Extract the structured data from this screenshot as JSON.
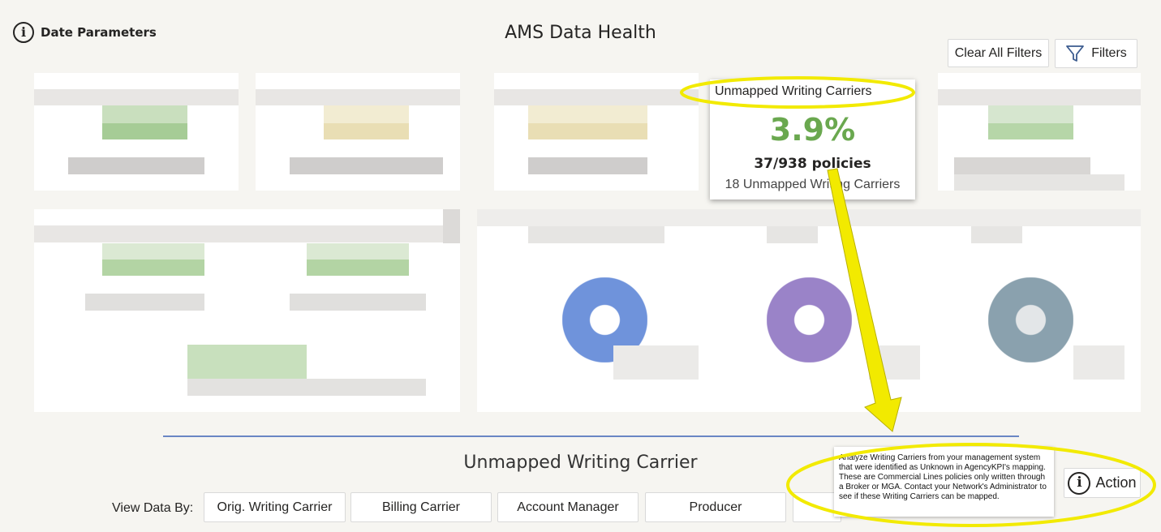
{
  "header": {
    "date_parameters_label": "Date Parameters",
    "title": "AMS Data Health",
    "clear_filters_label": "Clear All Filters",
    "filters_label": "Filters"
  },
  "tooltip": {
    "title": "Unmapped Writing Carriers",
    "percent": "3.9%",
    "policies": "37/938 policies",
    "subtext": "18 Unmapped Writing Carriers"
  },
  "section": {
    "title": "Unmapped Writing Carrier",
    "view_data_by_label": "View Data By:",
    "view_options": [
      "Orig. Writing Carrier",
      "Billing Carrier",
      "Account Manager",
      "Producer",
      ""
    ]
  },
  "explainer": {
    "text": "Analyze Writing Carriers from your management system that were identified as Unknown in AgencyKPI's mapping. These are Commercial Lines policies only written through a Broker or MGA. Contact your Network's Administrator to see if these Writing Carriers can be mapped.",
    "action_label": "Action"
  },
  "colors": {
    "accent_green": "#6aa84f",
    "highlight_yellow": "#f2ea00",
    "divider_blue": "#6a86c4"
  },
  "icons": [
    "info-icon",
    "filter-icon"
  ]
}
